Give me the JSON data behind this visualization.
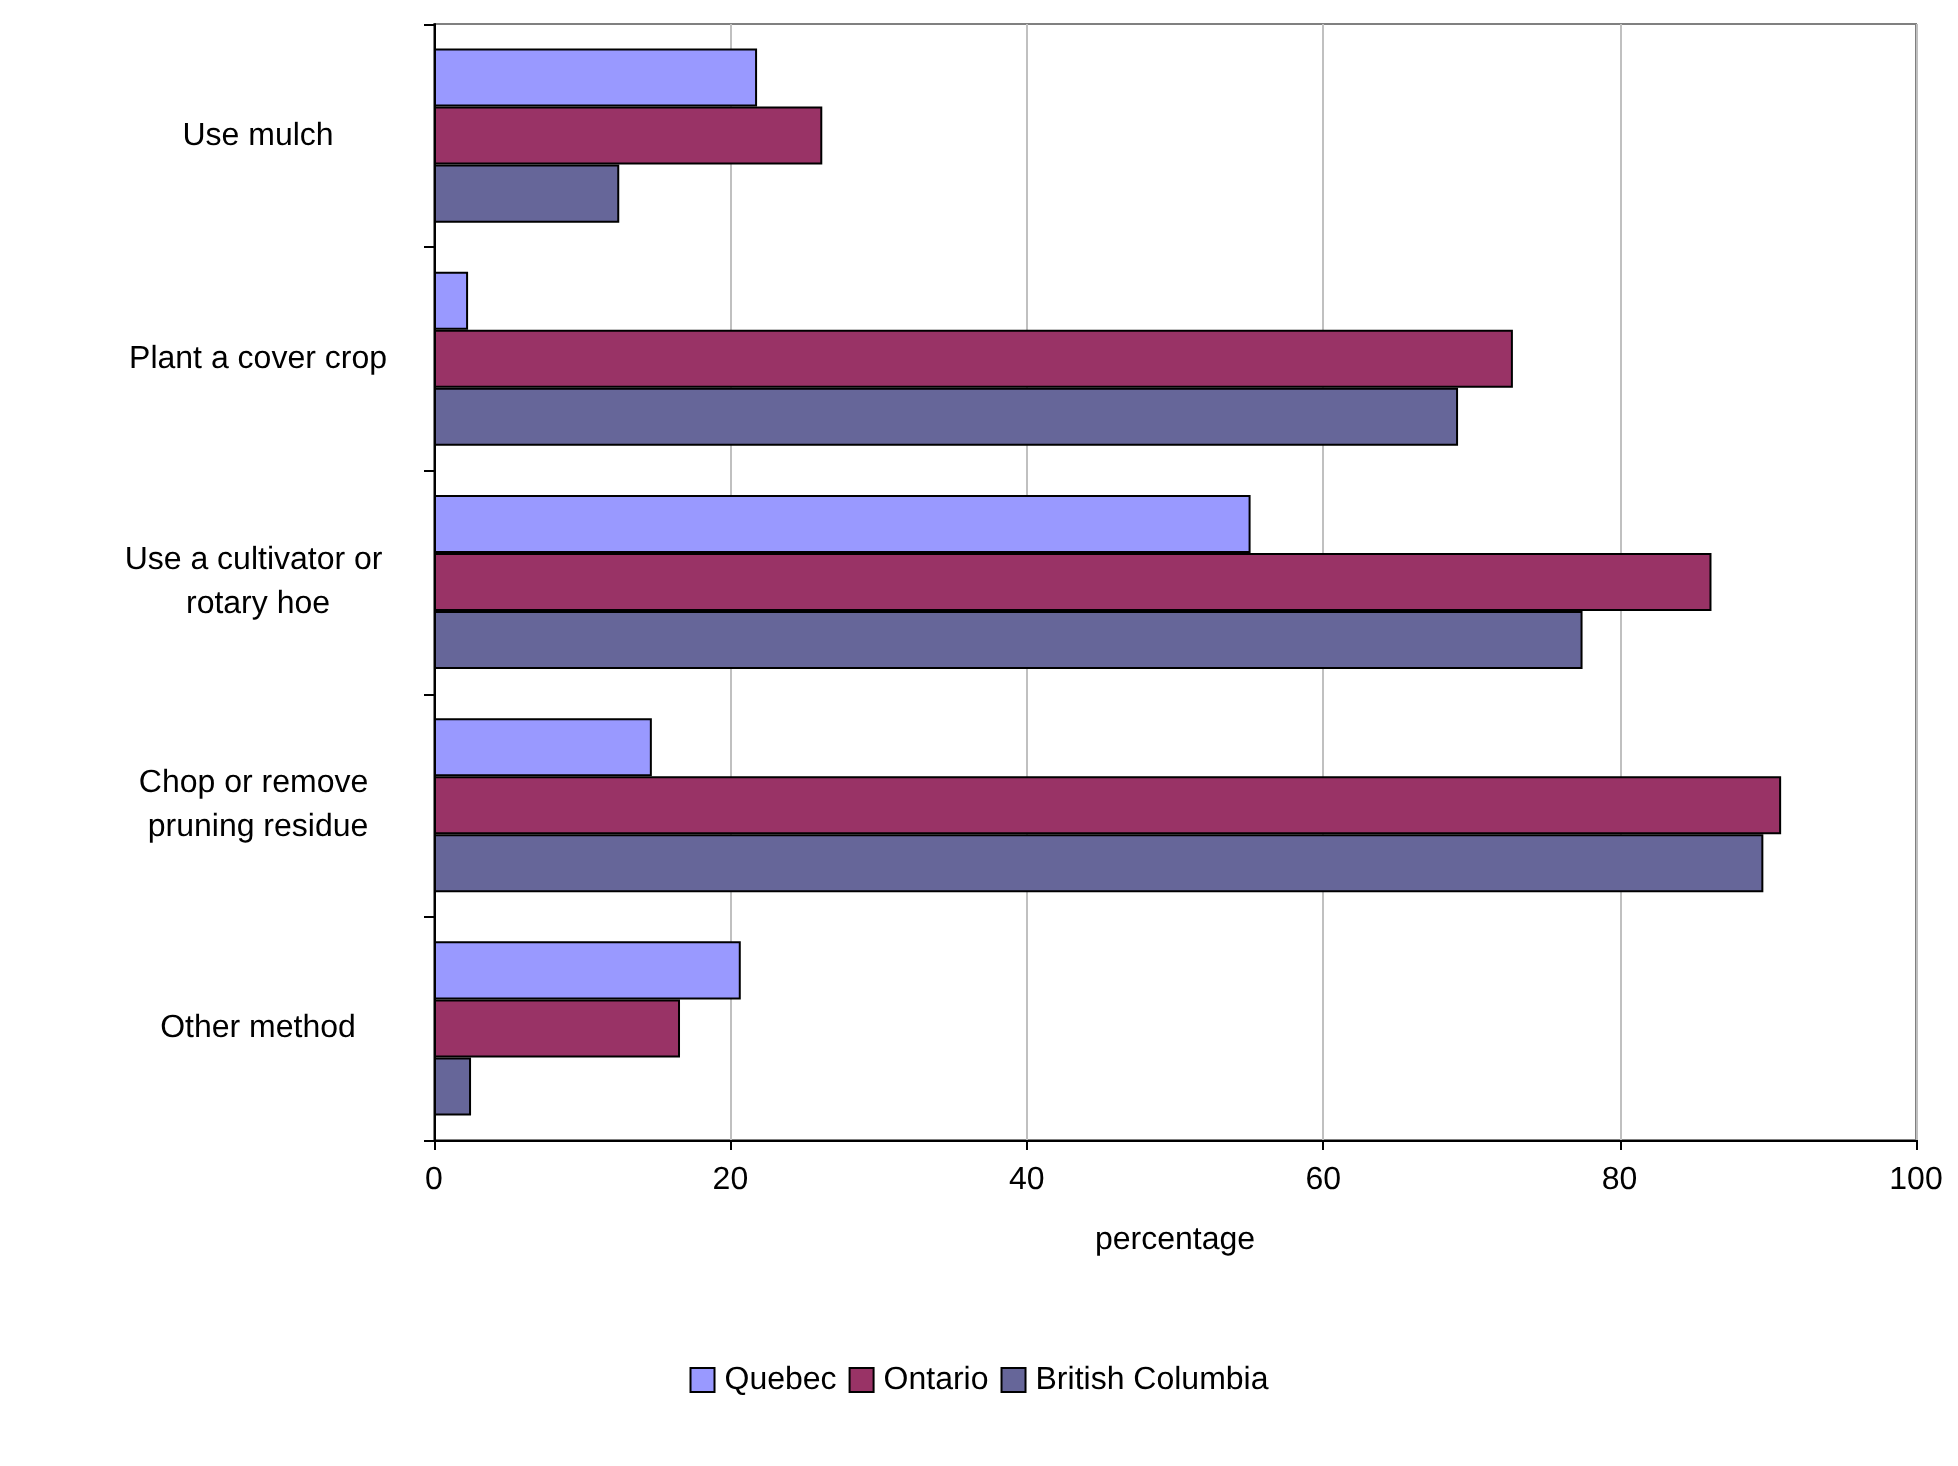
{
  "chart_data": {
    "type": "bar",
    "orientation": "horizontal",
    "xlabel": "percentage",
    "categories": [
      "Use mulch",
      "Plant a cover crop",
      "Use a cultivator or rotary hoe",
      "Chop or remove pruning residue",
      "Other method"
    ],
    "series": [
      {
        "name": "Quebec",
        "color": "#9999ff",
        "values": [
          21.8,
          2.3,
          55.1,
          14.7,
          20.7
        ]
      },
      {
        "name": "Ontario",
        "color": "#993366",
        "values": [
          26.2,
          72.8,
          86.2,
          90.9,
          16.6
        ]
      },
      {
        "name": "British Columbia",
        "color": "#666699",
        "values": [
          12.5,
          69.1,
          77.5,
          89.7,
          2.5
        ]
      }
    ],
    "xlim": [
      0,
      100
    ],
    "xticks": [
      0,
      20,
      40,
      60,
      80,
      100
    ],
    "grid": "x",
    "legend": "bottom"
  }
}
